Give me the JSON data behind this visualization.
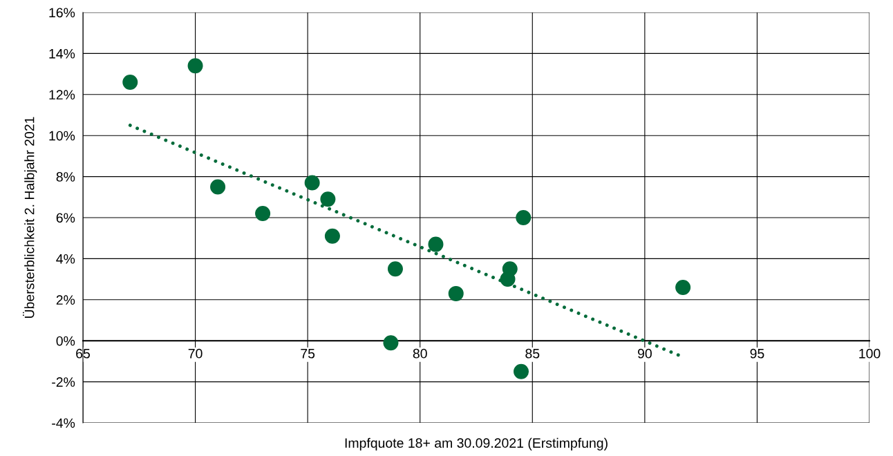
{
  "chart_data": {
    "type": "scatter",
    "xlabel": "Impfquote 18+ am 30.09.2021 (Erstimpfung)",
    "ylabel": "Übersterblichkeit 2. Halbjahr 2021",
    "xlim": [
      65,
      100
    ],
    "xticks": [
      65,
      70,
      75,
      80,
      85,
      90,
      95,
      100
    ],
    "ylim": [
      -4,
      16
    ],
    "yticks": [
      {
        "value": -4,
        "label": "-4%"
      },
      {
        "value": -2,
        "label": "-2%"
      },
      {
        "value": 0,
        "label": "0%"
      },
      {
        "value": 2,
        "label": "2%"
      },
      {
        "value": 4,
        "label": "4%"
      },
      {
        "value": 6,
        "label": "6%"
      },
      {
        "value": 8,
        "label": "8%"
      },
      {
        "value": 10,
        "label": "10%"
      },
      {
        "value": 12,
        "label": "12%"
      },
      {
        "value": 14,
        "label": "14%"
      },
      {
        "value": 16,
        "label": "16%"
      }
    ],
    "grid": true,
    "marker": "circle",
    "series": [
      {
        "color": "#006b3a",
        "x": [
          67.1,
          70.0,
          71.0,
          73.0,
          75.2,
          75.9,
          76.1,
          78.9,
          78.7,
          80.7,
          81.6,
          84.0,
          83.9,
          84.6,
          84.5,
          91.7
        ],
        "values": [
          12.6,
          13.4,
          7.5,
          6.2,
          7.7,
          6.9,
          5.1,
          3.5,
          -0.1,
          4.7,
          2.3,
          3.5,
          3.0,
          6.0,
          -1.5,
          2.6
        ]
      },
      {
        "type": "line",
        "color": "#006b3a",
        "line_style": "dotted",
        "marker": "none",
        "x": [
          67.1,
          91.5
        ],
        "values": [
          10.5,
          -0.7
        ]
      }
    ]
  }
}
